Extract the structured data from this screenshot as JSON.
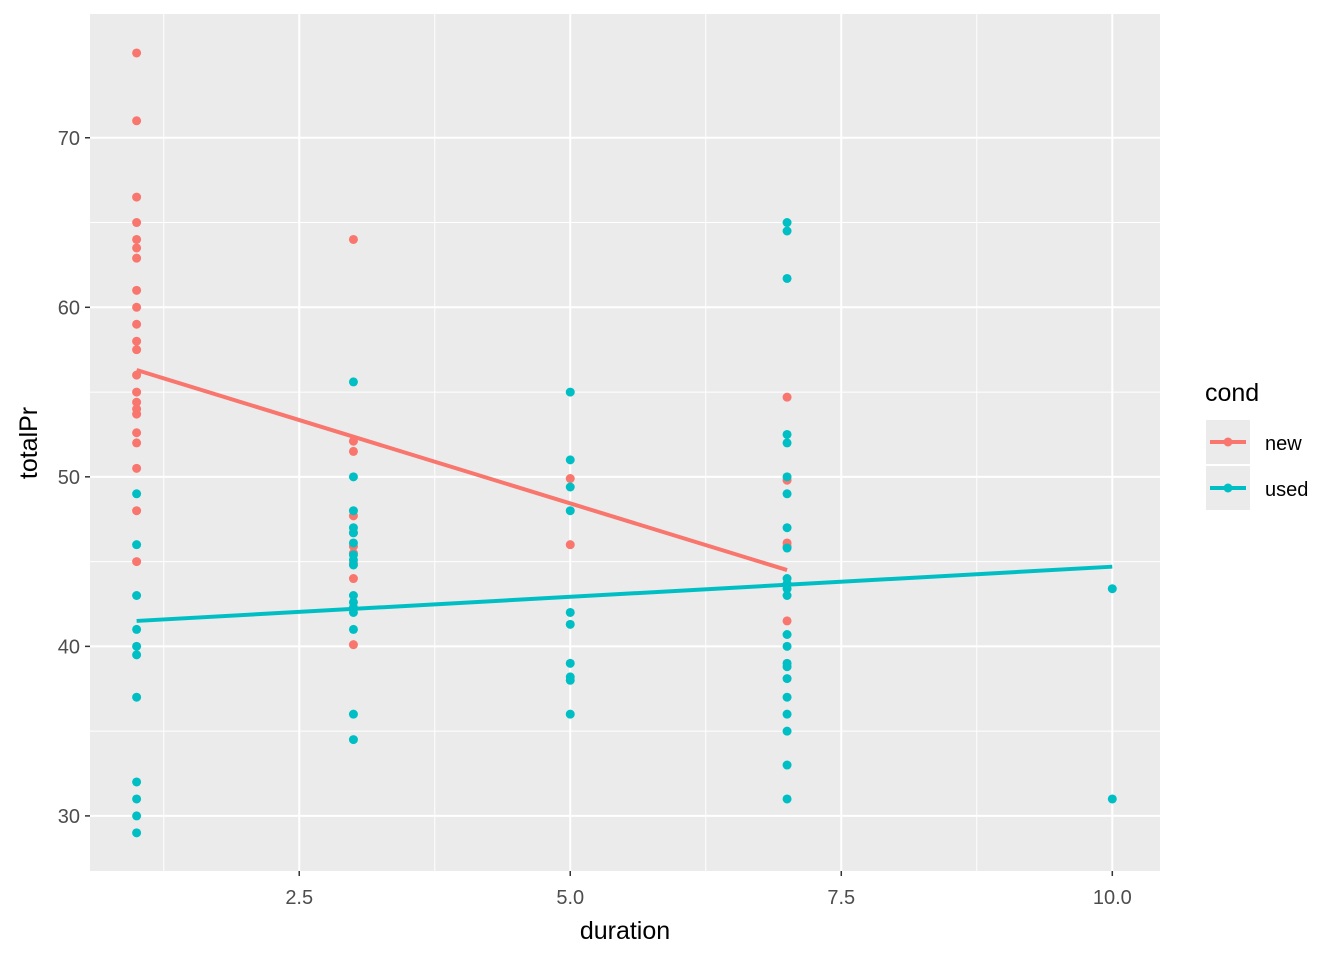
{
  "chart_data": {
    "type": "scatter",
    "xlabel": "duration",
    "ylabel": "totalPr",
    "xlim": [
      0.57,
      10.44
    ],
    "ylim": [
      26.75,
      77.3
    ],
    "xticks": [
      2.5,
      5.0,
      7.5,
      10.0
    ],
    "xtick_labels": [
      "2.5",
      "5.0",
      "7.5",
      "10.0"
    ],
    "yticks": [
      30,
      40,
      50,
      60,
      70
    ],
    "ytick_labels": [
      "30",
      "40",
      "50",
      "60",
      "70"
    ],
    "grid": true,
    "legend": {
      "title": "cond",
      "placement": "right"
    },
    "series": [
      {
        "name": "new",
        "color": "#F8766D",
        "points": [
          [
            1,
            75
          ],
          [
            1,
            71
          ],
          [
            1,
            66.5
          ],
          [
            1,
            65
          ],
          [
            1,
            64
          ],
          [
            1,
            63.5
          ],
          [
            1,
            62.9
          ],
          [
            1,
            61
          ],
          [
            1,
            60
          ],
          [
            1,
            59
          ],
          [
            1,
            58
          ],
          [
            1,
            57.5
          ],
          [
            1,
            56
          ],
          [
            1,
            55
          ],
          [
            1,
            54.4
          ],
          [
            1,
            54
          ],
          [
            1,
            53.7
          ],
          [
            1,
            52.6
          ],
          [
            1,
            52
          ],
          [
            1,
            50.5
          ],
          [
            1,
            48
          ],
          [
            1,
            45
          ],
          [
            3,
            64
          ],
          [
            3,
            52.1
          ],
          [
            3,
            51.5
          ],
          [
            3,
            47.7
          ],
          [
            3,
            46.7
          ],
          [
            3,
            45.9
          ],
          [
            3,
            45.5
          ],
          [
            3,
            44.9
          ],
          [
            3,
            44
          ],
          [
            3,
            40.1
          ],
          [
            5,
            49.9
          ],
          [
            5,
            46
          ],
          [
            7,
            54.7
          ],
          [
            7,
            49.8
          ],
          [
            7,
            46.1
          ],
          [
            7,
            45.9
          ],
          [
            7,
            41.5
          ]
        ],
        "fit_line": [
          [
            1,
            56.3
          ],
          [
            7,
            44.5
          ]
        ]
      },
      {
        "name": "used",
        "color": "#00BFC4",
        "points": [
          [
            1,
            49
          ],
          [
            1,
            46
          ],
          [
            1,
            43
          ],
          [
            1,
            41
          ],
          [
            1,
            40
          ],
          [
            1,
            39.5
          ],
          [
            1,
            37
          ],
          [
            1,
            32
          ],
          [
            1,
            31
          ],
          [
            1,
            30
          ],
          [
            1,
            29
          ],
          [
            3,
            55.6
          ],
          [
            3,
            50
          ],
          [
            3,
            48
          ],
          [
            3,
            47
          ],
          [
            3,
            46.7
          ],
          [
            3,
            46.1
          ],
          [
            3,
            45.4
          ],
          [
            3,
            45.1
          ],
          [
            3,
            44.8
          ],
          [
            3,
            43
          ],
          [
            3,
            42.6
          ],
          [
            3,
            42.3
          ],
          [
            3,
            42
          ],
          [
            3,
            41
          ],
          [
            3,
            36
          ],
          [
            3,
            34.5
          ],
          [
            5,
            55
          ],
          [
            5,
            51
          ],
          [
            5,
            49.4
          ],
          [
            5,
            48
          ],
          [
            5,
            42
          ],
          [
            5,
            41.3
          ],
          [
            5,
            39
          ],
          [
            5,
            38.2
          ],
          [
            5,
            38
          ],
          [
            5,
            36
          ],
          [
            7,
            65
          ],
          [
            7,
            64.5
          ],
          [
            7,
            61.7
          ],
          [
            7,
            52.5
          ],
          [
            7,
            52
          ],
          [
            7,
            50
          ],
          [
            7,
            49
          ],
          [
            7,
            47
          ],
          [
            7,
            45.8
          ],
          [
            7,
            44
          ],
          [
            7,
            43.7
          ],
          [
            7,
            43.4
          ],
          [
            7,
            43
          ],
          [
            7,
            40.7
          ],
          [
            7,
            40
          ],
          [
            7,
            39
          ],
          [
            7,
            38.8
          ],
          [
            7,
            38.1
          ],
          [
            7,
            37
          ],
          [
            7,
            36
          ],
          [
            7,
            35
          ],
          [
            7,
            33
          ],
          [
            7,
            31
          ],
          [
            10,
            43.4
          ],
          [
            10,
            31
          ]
        ],
        "fit_line": [
          [
            1,
            41.5
          ],
          [
            10,
            44.7
          ]
        ]
      }
    ]
  }
}
